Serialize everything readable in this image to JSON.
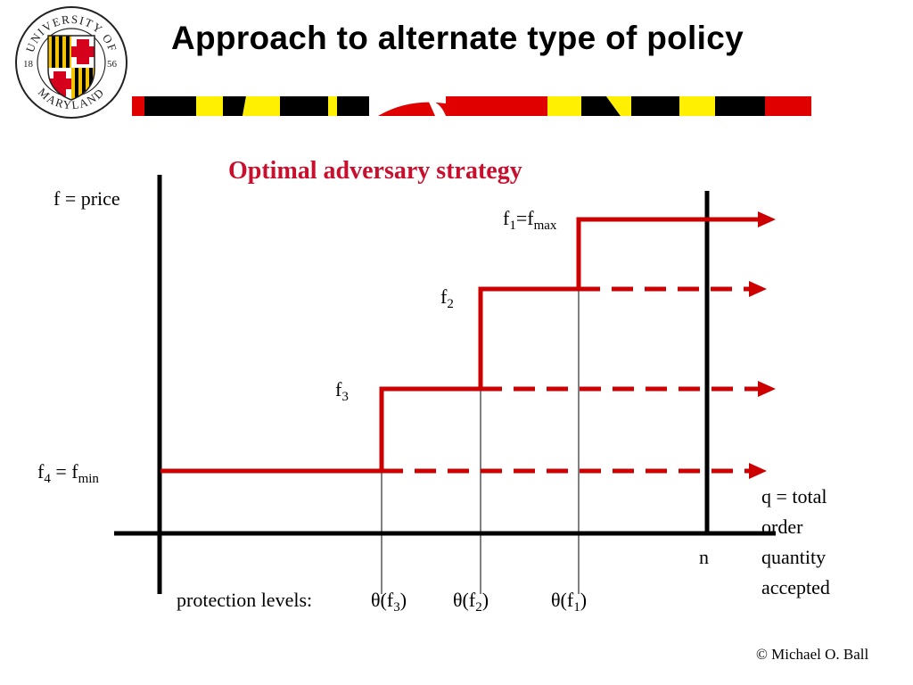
{
  "header": {
    "title": "Approach to alternate type of policy",
    "logo": {
      "top_text": "UNIVERSITY OF",
      "bottom_text": "MARYLAND",
      "year_left": "18",
      "year_right": "56"
    },
    "stripe_colors": [
      "#cc0000",
      "#000000",
      "#ffd700",
      "#ffffff"
    ]
  },
  "diagram": {
    "title": "Optimal adversary strategy",
    "accent_color": "#cc0000",
    "y_axis_label": "f = price",
    "levels": {
      "f1": {
        "base": "f",
        "sub": "1",
        "eq": "=f",
        "sub2": "max"
      },
      "f2": {
        "base": "f",
        "sub": "2"
      },
      "f3": {
        "base": "f",
        "sub": "3"
      },
      "f4": {
        "base": "f",
        "sub": "4",
        "eq": " = f",
        "sub2": "min"
      }
    },
    "n_label": "n",
    "x_axis_label": [
      "q = total",
      "order",
      "quantity",
      "accepted"
    ],
    "protection": {
      "label": "protection levels:",
      "theta": "θ",
      "items": [
        {
          "open": "(f",
          "sub": "3",
          "close": ")"
        },
        {
          "open": "(f",
          "sub": "2",
          "close": ")"
        },
        {
          "open": "(f",
          "sub": "1",
          "close": ")"
        }
      ]
    }
  },
  "footer": {
    "copyright": "© Michael O. Ball"
  }
}
